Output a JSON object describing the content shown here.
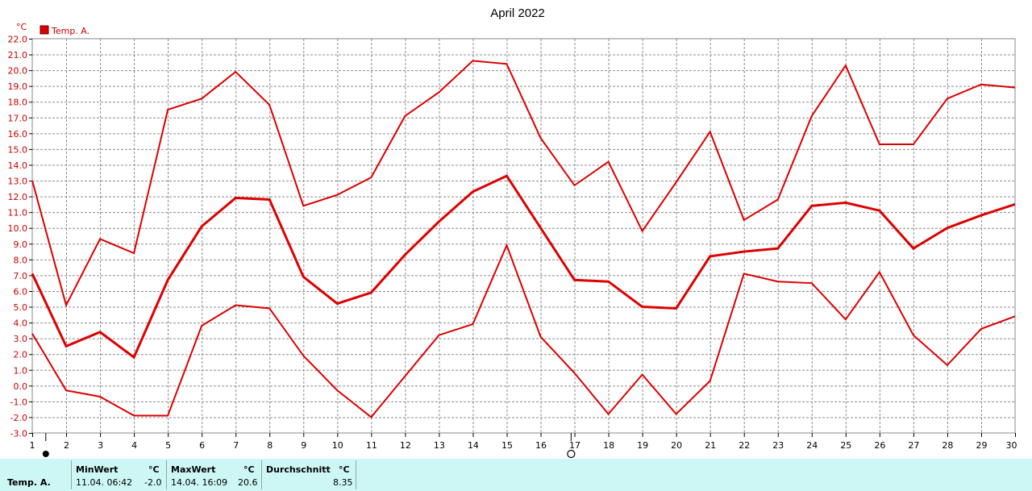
{
  "chart_data": {
    "type": "line",
    "title": "April 2022",
    "ylabel": "°C",
    "ylim": [
      -3.0,
      22.0
    ],
    "ytick_step": 1.0,
    "xlim": [
      1,
      30
    ],
    "x_ticks": [
      1,
      2,
      3,
      4,
      5,
      6,
      7,
      8,
      9,
      10,
      11,
      12,
      13,
      14,
      15,
      16,
      17,
      18,
      19,
      20,
      21,
      22,
      23,
      24,
      25,
      26,
      27,
      28,
      29,
      30
    ],
    "grid": true,
    "legend": "top-left",
    "legend_label": "Temp. A.",
    "color": "#dd0000",
    "series": [
      {
        "role": "max",
        "x": [
          1,
          2,
          3,
          4,
          5,
          6,
          7,
          8,
          9,
          10,
          11,
          12,
          13,
          14,
          15,
          16,
          17,
          18,
          19,
          20,
          21,
          22,
          23,
          24,
          25,
          26,
          27,
          28,
          29,
          30
        ],
        "values": [
          13.0,
          5.1,
          9.3,
          8.4,
          17.5,
          18.2,
          19.9,
          17.8,
          11.4,
          12.1,
          13.2,
          17.1,
          18.6,
          20.6,
          20.4,
          15.7,
          12.7,
          14.2,
          9.8,
          12.9,
          16.1,
          10.5,
          11.8,
          17.1,
          20.3,
          15.3,
          15.3,
          18.2,
          19.1,
          18.9
        ]
      },
      {
        "role": "mean",
        "x": [
          1,
          2,
          3,
          4,
          5,
          6,
          7,
          8,
          9,
          10,
          11,
          12,
          13,
          14,
          15,
          16,
          17,
          18,
          19,
          20,
          21,
          22,
          23,
          24,
          25,
          26,
          27,
          28,
          29,
          30
        ],
        "values": [
          7.1,
          2.5,
          3.4,
          1.8,
          6.7,
          10.1,
          11.9,
          11.8,
          6.9,
          5.2,
          5.9,
          8.3,
          10.4,
          12.3,
          13.3,
          10.0,
          6.7,
          6.6,
          5.0,
          4.9,
          8.2,
          8.5,
          8.7,
          11.4,
          11.6,
          11.1,
          8.7,
          10.0,
          10.8,
          11.5
        ]
      },
      {
        "role": "min",
        "x": [
          1,
          2,
          3,
          4,
          5,
          6,
          7,
          8,
          9,
          10,
          11,
          12,
          13,
          14,
          15,
          16,
          17,
          18,
          19,
          20,
          21,
          22,
          23,
          24,
          25,
          26,
          27,
          28,
          29,
          30
        ],
        "values": [
          3.3,
          -0.3,
          -0.7,
          -1.9,
          -1.9,
          3.8,
          5.1,
          4.9,
          1.9,
          -0.3,
          -2.0,
          0.6,
          3.2,
          3.9,
          8.9,
          3.1,
          0.8,
          -1.8,
          0.7,
          -1.8,
          0.3,
          7.1,
          6.6,
          6.5,
          4.2,
          7.2,
          3.2,
          1.3,
          3.6,
          4.4
        ]
      }
    ],
    "markers": [
      {
        "x": 1.4,
        "symbol": "full-moon"
      },
      {
        "x": 16.9,
        "symbol": "new-moon"
      }
    ]
  },
  "stats": {
    "row_label": "Temp. A.",
    "min_header": "MinWert",
    "min_unit": "°C",
    "min_time": "11.04.  06:42",
    "min_value": "-2.0",
    "max_header": "MaxWert",
    "max_unit": "°C",
    "max_time": "14.04.  16:09",
    "max_value": "20.6",
    "avg_header": "Durchschnitt",
    "avg_unit": "°C",
    "avg_value": "8.35"
  }
}
